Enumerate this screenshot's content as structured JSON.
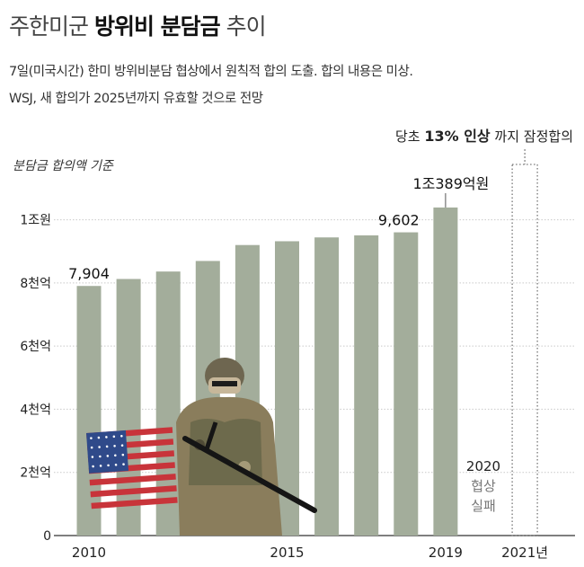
{
  "header": {
    "title_light_1": "주한미군",
    "title_bold": "방위비 분담금",
    "title_light_2": "추이",
    "subtitle_1": "7일(미국시간) 한미 방위비분담 협상에서 원칙적 합의 도출. 합의 내용은 미상.",
    "subtitle_2": "WSJ,  새 합의가 2025년까지 유효할 것으로 전망"
  },
  "annotation": {
    "prefix": "당초",
    "bold": "13% 인상",
    "suffix": "까지 잠정합의"
  },
  "basis_label": "분담금 합의액 기준",
  "chart_data": {
    "type": "bar",
    "categories": [
      "2010",
      "2011",
      "2012",
      "2013",
      "2014",
      "2015",
      "2016",
      "2017",
      "2018",
      "2019",
      "2020",
      "2021"
    ],
    "values": [
      7904,
      8125,
      8361,
      8695,
      9200,
      9320,
      9441,
      9507,
      9602,
      10389,
      null,
      null
    ],
    "unit": "억원",
    "ylim": [
      0,
      10500
    ],
    "yticks": [
      {
        "value": 0,
        "label": "0"
      },
      {
        "value": 2000,
        "label": "2천억"
      },
      {
        "value": 4000,
        "label": "4천억"
      },
      {
        "value": 6000,
        "label": "6천억"
      },
      {
        "value": 8000,
        "label": "8천억"
      },
      {
        "value": 10000,
        "label": "1조원"
      }
    ],
    "xtick_labels": [
      {
        "index": 0,
        "label": "2010"
      },
      {
        "index": 5,
        "label": "2015"
      },
      {
        "index": 9,
        "label": "2019"
      },
      {
        "index": 11,
        "label": "2021년"
      }
    ],
    "data_labels": [
      {
        "index": 0,
        "label": "7,904"
      },
      {
        "index": 8,
        "label": "9,602"
      },
      {
        "index": 9,
        "label": "1조389억원"
      }
    ],
    "failed_2020_label": [
      "2020",
      "협상",
      "실패"
    ],
    "grid": true,
    "bar_color": "#a3ad9b",
    "dotted_bar_color": "#777777"
  }
}
